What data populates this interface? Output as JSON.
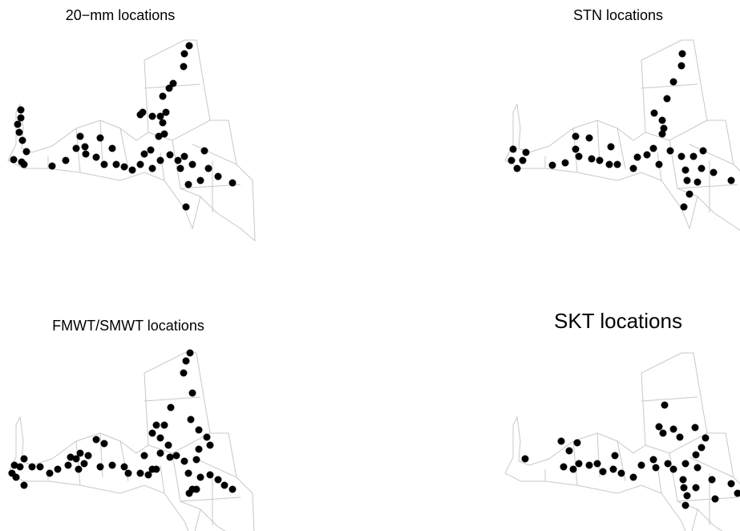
{
  "panels": [
    {
      "title": "20−mm locations"
    },
    {
      "title": "STN locations"
    },
    {
      "title": "FMWT/SMWT locations"
    },
    {
      "title": "SKT locations"
    }
  ]
}
